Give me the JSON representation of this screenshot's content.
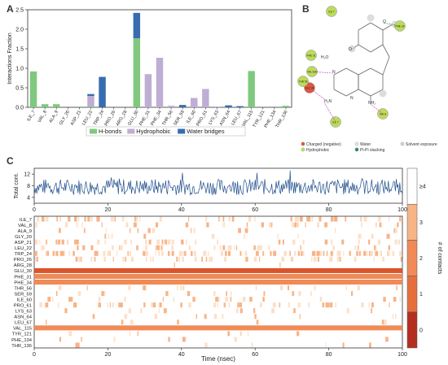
{
  "panels": {
    "a": "A",
    "b": "B",
    "c": "C"
  },
  "chart_data": [
    {
      "type": "bar",
      "ylabel": "Interactions Fraction",
      "ylim": [
        0,
        2.5
      ],
      "yticks": [
        "0.0",
        "0.5",
        "1.0",
        "1.5",
        "2.0",
        "2.5"
      ],
      "categories": [
        "ILE_7",
        "VAL_8",
        "ALA_9",
        "GLY_20",
        "ASP_21",
        "LEU_22",
        "TRP_24",
        "PRO_26",
        "ARG_28",
        "GLU_30",
        "PHE_31",
        "PHE_34",
        "THR_56",
        "SER_59",
        "ILE_60",
        "PRO_61",
        "LYS_63",
        "ASN_64",
        "LEU_67",
        "VAL_115",
        "TYR_121",
        "PHE_134",
        "THR_136"
      ],
      "series": [
        {
          "name": "H-bonds",
          "color": "#7fc97f",
          "values": [
            0.92,
            0.08,
            0.08,
            0,
            0.02,
            0.02,
            0,
            0,
            0,
            1.77,
            0,
            0,
            0,
            0,
            0,
            0,
            0,
            0,
            0,
            0.93,
            0,
            0,
            0.04
          ]
        },
        {
          "name": "Hydrophobic",
          "color": "#beaed4",
          "values": [
            0,
            0,
            0,
            0,
            0,
            0.27,
            0,
            0,
            0,
            0,
            0.85,
            1.27,
            0.04,
            0,
            0.24,
            0.47,
            0.02,
            0,
            0,
            0,
            0,
            0,
            0
          ]
        },
        {
          "name": "Water bridges",
          "color": "#386cb0",
          "values": [
            0,
            0,
            0,
            0,
            0,
            0.05,
            0.78,
            0,
            0,
            0.65,
            0,
            0,
            0,
            0.06,
            0,
            0,
            0,
            0.05,
            0.03,
            0,
            0,
            0,
            0
          ]
        }
      ],
      "legend": "bottom"
    },
    {
      "type": "line",
      "ylabel": "Total cont.",
      "yticks": [
        4,
        8,
        12
      ],
      "ylim": [
        2,
        14
      ],
      "xlim": [
        0,
        100
      ],
      "color": "#1f4e8c"
    },
    {
      "type": "heatmap",
      "xlabel": "Time (nsec)",
      "xticks": [
        0,
        20,
        40,
        60,
        80,
        100
      ],
      "rows": [
        "ILE_7",
        "VAL_8",
        "ALA_9",
        "GLY_20",
        "ASP_21",
        "LEU_22",
        "TRP_24",
        "PRO_26",
        "ARG_28",
        "GLU_30",
        "PHE_31",
        "PHE_34",
        "THR_56",
        "SER_59",
        "ILE_60",
        "PRO_61",
        "LYS_63",
        "ASN_64",
        "LEU_67",
        "VAL_115",
        "TYR_121",
        "PHE_134",
        "THR_136"
      ],
      "row_density": [
        0.35,
        0.2,
        0.1,
        0.08,
        0.3,
        0.25,
        0.6,
        0.3,
        0.02,
        0.95,
        0.85,
        0.9,
        0.1,
        0.1,
        0.15,
        0.3,
        0.1,
        0.08,
        0.05,
        0.9,
        0.05,
        0.05,
        0.05
      ],
      "colorbar_label": "# of contacts",
      "colorbar_ticks": [
        "0",
        "1",
        "2",
        "3",
        "≥4"
      ]
    }
  ],
  "molecule_legend": {
    "items": [
      {
        "label": "Charged (negative)",
        "color": "#e0563a"
      },
      {
        "label": "Water",
        "color": "#dde3e8"
      },
      {
        "label": "Solvent exposure",
        "color": "#cfcfcf"
      },
      {
        "label": "Hydrophobic",
        "color": "#bddb5a"
      },
      {
        "label": "Pi-Pi stacking",
        "color": "#2e8b57"
      }
    ],
    "residues": [
      "ILE 7",
      "PHE 34",
      "PHE 31",
      "VAL 115",
      "GLU 30",
      "ILE 7",
      "VAL 8",
      "THR 56"
    ],
    "atom_labels": [
      "H₂N",
      "NH₂",
      "N",
      "N",
      "O",
      "O",
      "H₂O"
    ]
  }
}
